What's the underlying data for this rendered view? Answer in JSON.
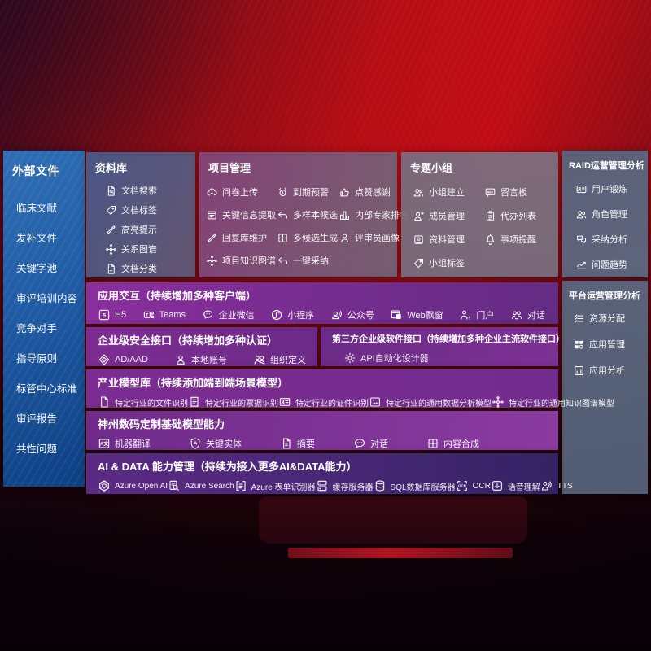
{
  "colors": {
    "background_red": "#c10d15",
    "sidebar_blue": "#1f5ba5",
    "band_purple": "#7b2d8e",
    "panel_slate": "#5c6a82"
  },
  "sidebar": {
    "title": "外部文件",
    "items": [
      {
        "label": "临床文献"
      },
      {
        "label": "发补文件"
      },
      {
        "label": "关键字池"
      },
      {
        "label": "审评培训内容"
      },
      {
        "label": "竞争对手"
      },
      {
        "label": "指导原则"
      },
      {
        "label": "标管中心标准"
      },
      {
        "label": "审评报告"
      },
      {
        "label": "共性问题"
      }
    ]
  },
  "panels": {
    "library": {
      "title": "资料库",
      "items": [
        {
          "icon": "doc-search",
          "label": "文档搜索"
        },
        {
          "icon": "tag",
          "label": "文档标签"
        },
        {
          "icon": "pencil",
          "label": "高亮提示"
        },
        {
          "icon": "network",
          "label": "关系图谱"
        },
        {
          "icon": "doc-lines",
          "label": "文档分类"
        }
      ]
    },
    "project": {
      "title": "项目管理",
      "items": [
        {
          "icon": "cloud-upload",
          "label": "问卷上传"
        },
        {
          "icon": "alarm",
          "label": "到期预警"
        },
        {
          "icon": "thumbs-up",
          "label": "点赞感谢"
        },
        {
          "icon": "extract",
          "label": "关键信息提取"
        },
        {
          "icon": "reply",
          "label": "多样本候选"
        },
        {
          "icon": "podium",
          "label": "内部专家排名"
        },
        {
          "icon": "pencil",
          "label": "回复库维护"
        },
        {
          "icon": "puzzle",
          "label": "多候选生成"
        },
        {
          "icon": "person",
          "label": "评审员画像"
        },
        {
          "icon": "network",
          "label": "项目知识图谱"
        },
        {
          "icon": "reply",
          "label": "一键采纳"
        }
      ]
    },
    "groups": {
      "title": "专题小组",
      "items": [
        {
          "icon": "people",
          "label": "小组建立"
        },
        {
          "icon": "bbs",
          "label": "留言板"
        },
        {
          "icon": "person-add",
          "label": "成员管理"
        },
        {
          "icon": "clipboard",
          "label": "代办列表"
        },
        {
          "icon": "album",
          "label": "资料管理"
        },
        {
          "icon": "bell",
          "label": "事项提醒"
        },
        {
          "icon": "tag",
          "label": "小组标签"
        }
      ]
    },
    "raid": {
      "title": "RAID运营管理分析",
      "items": [
        {
          "icon": "id-card",
          "label": "用户锻炼"
        },
        {
          "icon": "people",
          "label": "角色管理"
        },
        {
          "icon": "chat-qa",
          "label": "采纳分析"
        },
        {
          "icon": "trend",
          "label": "问题趋势"
        }
      ]
    },
    "platform": {
      "title": "平台运营管理分析",
      "items": [
        {
          "icon": "list-check",
          "label": "资源分配"
        },
        {
          "icon": "grid",
          "label": "应用管理"
        },
        {
          "icon": "chart-doc",
          "label": "应用分析"
        }
      ]
    }
  },
  "bands": {
    "interaction": {
      "title": "应用交互（持续增加多种客户端）",
      "items": [
        {
          "icon": "h5",
          "label": "H5"
        },
        {
          "icon": "teams",
          "label": "Teams"
        },
        {
          "icon": "wechat",
          "label": "企业微信"
        },
        {
          "icon": "miniapp",
          "label": "小程序"
        },
        {
          "icon": "official",
          "label": "公众号"
        },
        {
          "icon": "window",
          "label": "Web飘窗"
        },
        {
          "icon": "portal",
          "label": "门户"
        },
        {
          "icon": "dialogue",
          "label": "对话"
        }
      ]
    },
    "security": {
      "title": "企业级安全接口（持续增加多种认证）",
      "items": [
        {
          "icon": "diamond",
          "label": "AD/AAD"
        },
        {
          "icon": "person",
          "label": "本地账号"
        },
        {
          "icon": "org",
          "label": "组织定义"
        }
      ]
    },
    "thirdparty": {
      "title": "第三方企业级软件接口（持续增加多种企业主流软件接口）",
      "items": [
        {
          "icon": "gear",
          "label": "API自动化设计器"
        }
      ]
    },
    "models": {
      "title": "产业模型库（持续添加端到端场景模型）",
      "items": [
        {
          "icon": "doc",
          "label": "特定行业的文件识别"
        },
        {
          "icon": "receipt",
          "label": "特定行业的票据识别"
        },
        {
          "icon": "id-card",
          "label": "特定行业的证件识别"
        },
        {
          "icon": "image-chart",
          "label": "特定行业的通用数据分析模型"
        },
        {
          "icon": "network",
          "label": "特定行业的通用知识图谱模型"
        }
      ]
    },
    "base_models": {
      "title": "神州数码定制基础模型能力",
      "items": [
        {
          "icon": "translate",
          "label": "机器翻译"
        },
        {
          "icon": "shield-a",
          "label": "关键实体"
        },
        {
          "icon": "doc-lines",
          "label": "摘要"
        },
        {
          "icon": "chat",
          "label": "对话"
        },
        {
          "icon": "puzzle",
          "label": "内容合成"
        }
      ]
    },
    "aidata": {
      "title": "AI & DATA 能力管理（持续为接入更多AI&DATA能力）",
      "items": [
        {
          "icon": "openai",
          "label": "Azure Open AI"
        },
        {
          "icon": "search-doc",
          "label": "Azure Search"
        },
        {
          "icon": "form",
          "label": "Azure 表单识别器"
        },
        {
          "icon": "server",
          "label": "缓存服务器"
        },
        {
          "icon": "database",
          "label": "SQL数据库服务器"
        },
        {
          "icon": "ocr",
          "label": "OCR"
        },
        {
          "icon": "speech-box",
          "label": "语音理解"
        },
        {
          "icon": "tts",
          "label": "TTS"
        }
      ]
    }
  }
}
